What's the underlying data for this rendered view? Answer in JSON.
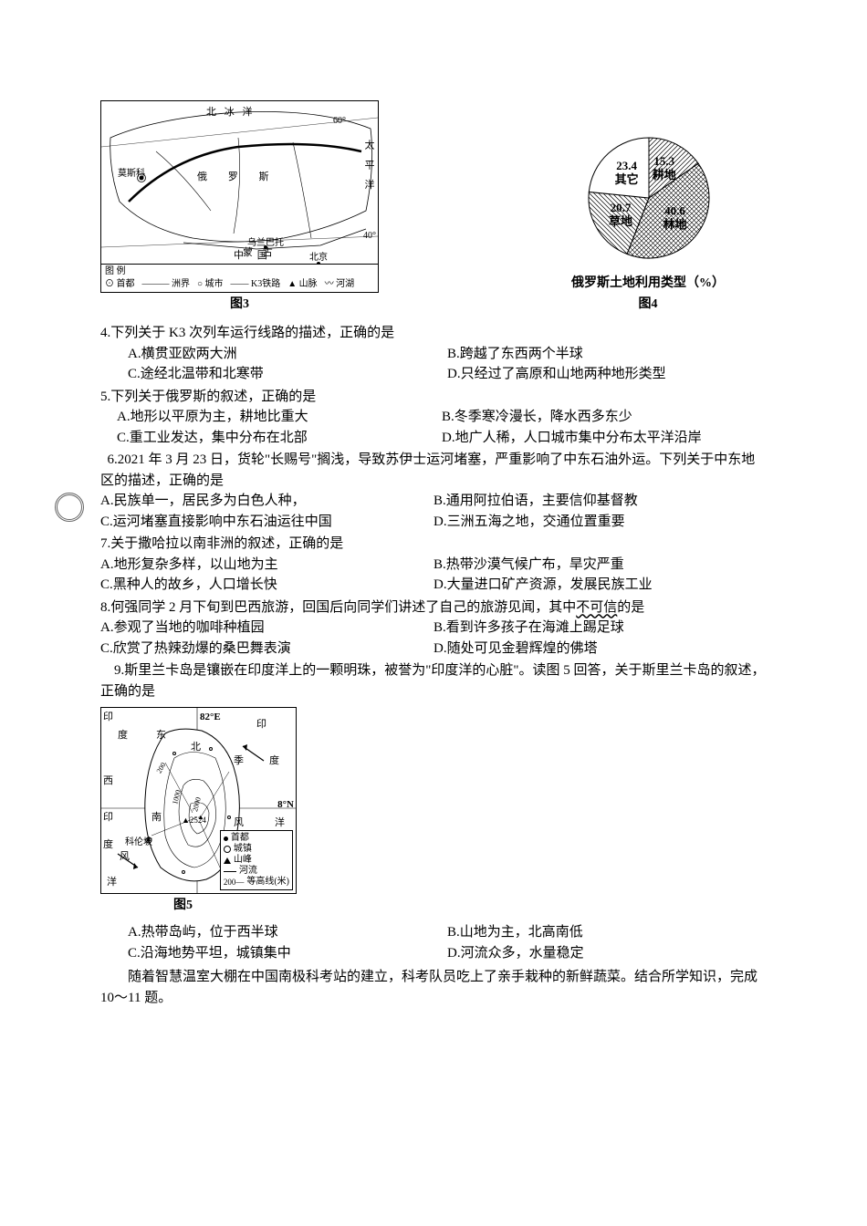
{
  "fig3": {
    "caption": "图3",
    "ocean_top": "北  冰  洋",
    "ocean_right": "太  平  洋",
    "country_main": "俄  罗  斯",
    "city1": "莫斯科",
    "city2": "乌兰巴托",
    "city3": "北京",
    "country2": "蒙  古",
    "country3": "中    国",
    "lat1": "40°",
    "lat2": "60°",
    "sea": "北纬60°",
    "legend_title": "图  例",
    "legend_items": [
      "⊙ 首都",
      "——— 洲界",
      "○ 城市",
      "—— K3铁路",
      "▲ 山脉",
      "〰 河湖"
    ]
  },
  "fig4": {
    "caption": "图4",
    "title": "俄罗斯土地利用类型（%）",
    "slices": [
      {
        "label": "耕地",
        "value": "15.3",
        "pct": 15.3,
        "fill": "diag"
      },
      {
        "label": "林地",
        "value": "40.6",
        "pct": 40.6,
        "fill": "cross"
      },
      {
        "label": "草地",
        "value": "20.7",
        "pct": 20.7,
        "fill": "diag2"
      },
      {
        "label": "其它",
        "value": "23.4",
        "pct": 23.4,
        "fill": "none"
      }
    ]
  },
  "q4": {
    "stem": "4.下列关于 K3 次列车运行线路的描述，正确的是",
    "a": "A.横贯亚欧两大洲",
    "b": "B.跨越了东西两个半球",
    "c": "C.途经北温带和北寒带",
    "d": "D.只经过了高原和山地两种地形类型"
  },
  "q5": {
    "stem": "5.下列关于俄罗斯的叙述，正确的是",
    "a": "A.地形以平原为主，耕地比重大",
    "b": "B.冬季寒冷漫长，降水西多东少",
    "c": "C.重工业发达，集中分布在北部",
    "d": "D.地广人稀，人口城市集中分布太平洋沿岸"
  },
  "q6": {
    "stem": "  6.2021 年 3 月 23 日，货轮\"长赐号\"搁浅，导致苏伊士运河堵塞，严重影响了中东石油外运。下列关于中东地区的描述，正确的是",
    "a": "A.民族单一，居民多为白色人种，",
    "b": "B.通用阿拉伯语，主要信仰基督教",
    "c": "C.运河堵塞直接影响中东石油运往中国",
    "d": "D.三洲五海之地，交通位置重要"
  },
  "q7": {
    "stem": "7.关于撒哈拉以南非洲的叙述，正确的是",
    "a": "A.地形复杂多样，以山地为主",
    "b": "B.热带沙漠气候广布，旱灾严重",
    "c": "C.黑种人的故乡，人口增长快",
    "d": "D.大量进口矿产资源，发展民族工业"
  },
  "q8": {
    "stem_pre": "8.何强同学 2 月下旬到巴西旅游，回国后向同学们讲述了自己的旅游见闻，其中",
    "stem_underline": "不可信",
    "stem_post": "的是",
    "a": "A.参观了当地的咖啡种植园",
    "b": "B.看到许多孩子在海滩上踢足球",
    "c": "C.欣赏了热辣劲爆的桑巴舞表演",
    "d": "D.随处可见金碧辉煌的佛塔"
  },
  "q9": {
    "stem": "    9.斯里兰卡岛是镶嵌在印度洋上的一颗明珠，被誉为\"印度洋的心脏\"。读图 5 回答，关于斯里兰卡岛的叙述，正确的是",
    "a": "A.热带岛屿，位于西半球",
    "b": "B.山地为主，北高南低",
    "c": "C.沿海地势平坦，城镇集中",
    "d": "D.河流众多，水量稳定"
  },
  "fig5": {
    "caption": "图5",
    "lon": "82°E",
    "lat": "8°N",
    "ocean_ne": "印",
    "ocean_ne2": "度",
    "ocean_ne3": "洋",
    "ocean_nw1": "印",
    "ocean_nw2": "度",
    "ocean_w1": "西",
    "ocean_sw1": "印",
    "ocean_sw2": "度",
    "ocean_s": "洋",
    "dir_e": "东",
    "dir_n": "北",
    "dir_s": "南",
    "seasonal": "季",
    "wind": "风",
    "city": "科伦坡",
    "peak": "▲2524",
    "contour1": "200",
    "contour2": "1000",
    "contour3": "2000",
    "legend": [
      "首都",
      "城镇",
      "山峰",
      "河流",
      "等高线(米)"
    ],
    "legend_contour_sym": "200—"
  },
  "footer": "        随着智慧温室大棚在中国南极科考站的建立，科考队员吃上了亲手栽种的新鲜蔬菜。结合所学知识，完成 10～11 题。"
}
